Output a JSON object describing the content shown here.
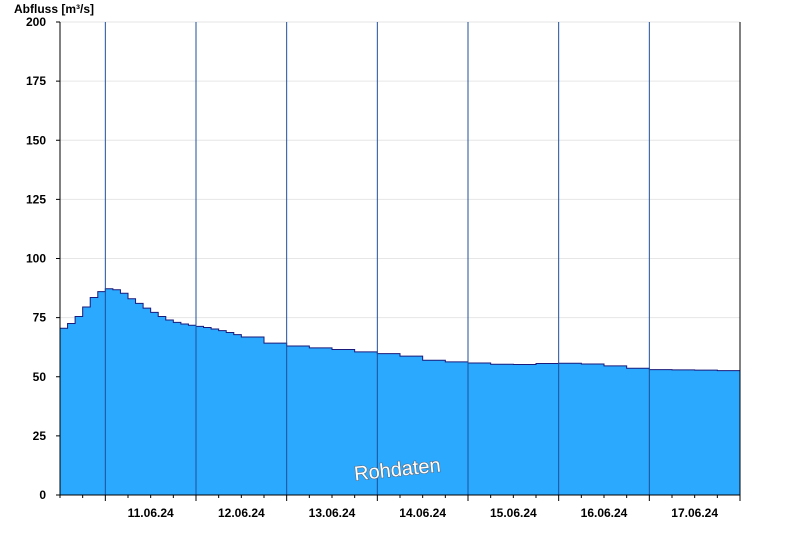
{
  "chart_data": {
    "type": "area",
    "ylabel": "Abfluss [m³/s]",
    "ylim": [
      0,
      200
    ],
    "yticks": [
      0,
      25,
      50,
      75,
      100,
      125,
      150,
      175,
      200
    ],
    "xlim": [
      "10.06.24 00:00",
      "17.06.24 12:00"
    ],
    "xtick_labels": [
      "11.06.24",
      "12.06.24",
      "13.06.24",
      "14.06.24",
      "15.06.24",
      "16.06.24",
      "17.06.24"
    ],
    "grid": true,
    "series": [
      {
        "x": [
          "10.06.24 00:00",
          "10.06.24 02:00",
          "10.06.24 04:00",
          "10.06.24 06:00",
          "10.06.24 08:00",
          "10.06.24 10:00",
          "10.06.24 12:00",
          "10.06.24 14:00",
          "10.06.24 16:00",
          "10.06.24 18:00",
          "10.06.24 20:00",
          "10.06.24 22:00",
          "11.06.24 00:00",
          "11.06.24 02:00",
          "11.06.24 04:00",
          "11.06.24 06:00",
          "11.06.24 08:00",
          "11.06.24 10:00",
          "11.06.24 12:00",
          "11.06.24 14:00",
          "11.06.24 16:00",
          "11.06.24 18:00",
          "11.06.24 20:00",
          "11.06.24 22:00",
          "12.06.24 00:00",
          "12.06.24 06:00",
          "12.06.24 12:00",
          "12.06.24 18:00",
          "13.06.24 00:00",
          "13.06.24 06:00",
          "13.06.24 12:00",
          "13.06.24 18:00",
          "14.06.24 00:00",
          "14.06.24 06:00",
          "14.06.24 12:00",
          "14.06.24 18:00",
          "15.06.24 00:00",
          "15.06.24 06:00",
          "15.06.24 12:00",
          "15.06.24 18:00",
          "16.06.24 00:00",
          "16.06.24 06:00",
          "16.06.24 12:00",
          "16.06.24 18:00",
          "17.06.24 00:00",
          "17.06.24 06:00",
          "17.06.24 12:00"
        ],
        "y": [
          70.5,
          72.5,
          75.5,
          79.5,
          83.5,
          86,
          87.2,
          86.8,
          85.3,
          83,
          81,
          79,
          77.2,
          75.5,
          74,
          73,
          72.3,
          71.8,
          71.3,
          70.8,
          70.2,
          69.5,
          68.7,
          67.8,
          66.8,
          64.2,
          63,
          62.2,
          61.5,
          60.5,
          59.8,
          58.7,
          57,
          56.3,
          55.8,
          55.3,
          55.2,
          55.6,
          55.7,
          55.4,
          54.6,
          53.6,
          53,
          52.9,
          52.8,
          52.6,
          52.3
        ]
      }
    ],
    "series_color": "#2aa9ff",
    "edge_color": "#1a1a7a",
    "annotation": "Rohdaten"
  }
}
